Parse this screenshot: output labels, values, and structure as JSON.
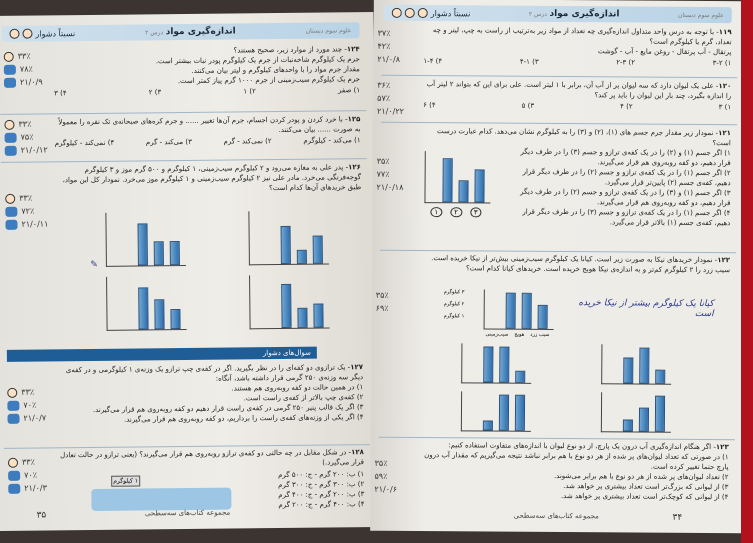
{
  "left_page": {
    "header": {
      "title": "اندازه‌گیری مواد",
      "lesson": "درس ۲",
      "level": "نسبتاً دشوار",
      "subject": "علوم سوم دبستان"
    },
    "questions": [
      {
        "num": "۱۲۴",
        "text": "چند مورد از موارد زیر، صحیح هستند؟",
        "items": [
          "جرم یک کیلوگرم شاخه‌نبات از جرم یک کیلوگرم پودر نبات بیشتر است.",
          "مقدار جرم مواد را با واحدهای کیلوگرم و لیتر بیان می‌کنند.",
          "جرم یک کیلوگرم سیب‌زمینی از جرم ۱۰۰۰ گرم پیاز کمتر است."
        ],
        "options": [
          "۱) صفر",
          "۲) ۱",
          "۳) ۲",
          "۴) ۳"
        ],
        "stats": [
          "۳۳٪",
          "۷۸٪",
          "۲۱/۰/۹"
        ]
      },
      {
        "num": "۱۲۵",
        "text": "با خرد کردن و پودر کردن اجسام، جرم آن‌ها تغییر ...... و جرم کره‌های صبحانه‌ی تک نفره را معمولاً به صورت ...... بیان می‌کنند.",
        "options": [
          "۱) می‌کند - کیلوگرم",
          "۲) نمی‌کند - گرم",
          "۳) می‌کند - گرم",
          "۴) نمی‌کند - کیلوگرم"
        ],
        "stats": [
          "۳۳٪",
          "۷۵٪",
          "۲۱/۰/۱۲"
        ]
      },
      {
        "num": "۱۲۶",
        "text": "پدر علی به مغازه می‌رود و ۲ کیلوگرم سیب‌زمینی، ۱ کیلوگرم و ۵۰۰ گرم موز و ۳ کیلوگرم گوجه‌فرنگی می‌خرد. مادر علی نیز ۲ کیلوگرم سیب‌زمینی و ۱ کیلوگرم موز می‌خرد. نمودار کل این مواد، طبق خریدهای آن‌ها کدام است؟",
        "axis_unit": "کیلوگرم",
        "categories": [
          "سیب‌زمینی",
          "موز",
          "گوجه‌فرنگی"
        ],
        "stats": [
          "۳۳٪",
          "۷۲٪",
          "۲۱/۰/۱۱"
        ]
      },
      {
        "num": "۱۲۷",
        "text": "یک ترازوی دو کفه‌ای را در نظر بگیرید. اگر در کفه‌ی چپ ترازو یک وزنه‌ی ۱ کیلوگرمی و در کفه‌ی دیگر سه وزنه‌ی ۲۵۰ گرمی قرار داشته باشد، آنگاه:",
        "items": [
          "۱) در همین حالت دو کفه روبه‌روی هم هستند.",
          "۲) کفه‌ی چپ بالاتر از کفه‌ی راست است.",
          "۳) اگر یک قالب پنیر ۲۵۰ گرمی در کفه‌ی راست قرار دهیم دو کفه روبه‌روی هم قرار می‌گیرند.",
          "۴) اگر یکی از وزنه‌های کفه‌ی راست را برداریم، دو کفه روبه‌روی هم قرار می‌گیرند."
        ],
        "stats": [
          "۳۳٪",
          "۷۰٪",
          "۲۱/۰/۷"
        ]
      },
      {
        "num": "۱۲۸",
        "text": "در شکل مقابل در چه حالتی دو کفه‌ی ترازو روبه‌روی هم قرار می‌گیرند؟ (یعنی ترازو در حالت تعادل قرار می‌گیرد.)",
        "items": [
          "۱) ب: ۲۰۰ گرم - ج: ۵۰۰ گرم",
          "۲) ب: ۳۰۰ گرم - ج: ۳۰۰ گرم",
          "۳) ب: ۲۰۰ گرم - ج: ۴۰۰ گرم",
          "۴) ب: ۴۰۰ گرم - ج: ۲۰۰ گرم"
        ],
        "scale_label": "۱ کیلوگرم",
        "stats": [
          "۳۳٪",
          "۷۰٪",
          "۲۱/۰/۳"
        ]
      }
    ],
    "banner": "سوال‌های دشوار",
    "footer": "مجموعه کتاب‌های سه‌سطحی",
    "page_number": "۳۵"
  },
  "right_page": {
    "header": {
      "title": "اندازه‌گیری مواد",
      "lesson": "درس ۲",
      "level": "نسبتاً دشوار",
      "subject": "علوم سوم دبستان"
    },
    "questions": [
      {
        "num": "۱۱۹",
        "text": "با توجه به درس واحد متداول اندازه‌گیری چه تعداد از مواد زیر به‌ترتیب از راست به چپ، لیتر و چه تعداد، گرم یا کیلوگرم است؟",
        "items": [
          "پرتقال - آب پرتقال - روغن مایع - آب - گوشت"
        ],
        "options": [
          "۱) ۳-۲",
          "۲) ۲-۳",
          "۳) ۴-۱",
          "۴) ۱-۴"
        ],
        "stats": [
          "۳۷٪",
          "۴۲٪",
          "۲۱/۰/۸"
        ]
      },
      {
        "num": "۱۲۰",
        "text": "علی یک لیوان دارد که سه لیوان پر از آب آن، برابر با ۱ لیتر است. علی برای این که بتواند ۲ لیتر آب را اندازه بگیرد، چند بار این لیوان را باید پر کند؟",
        "options": [
          "۱) ۳",
          "۲) ۴",
          "۳) ۵",
          "۴) ۶"
        ],
        "stats": [
          "۳۶٪",
          "۵۷٪",
          "۲۱/۰/۲۲"
        ]
      },
      {
        "num": "۱۲۱",
        "text": "نمودار زیر مقدار جرم جسم های (۱)، (۲) و (۳) را به کیلوگرم نشان می‌دهد. کدام عبارت درست است؟",
        "items": [
          "۱) اگر جسم (۱) و (۲) را در یک کفه‌ی ترازو و جسم (۳) را در طرف دیگر قرار دهیم، دو کفه روبه‌روی هم قرار می‌گیرند.",
          "۲) اگر جسم (۱) را در یک کفه‌ی ترازو و جسم (۲) را در طرف دیگر قرار دهیم، کفه‌ی جسم (۲) پایین‌تر قرار می‌گیرد.",
          "۳) اگر جسم (۱) و (۳) را در یک کفه‌ی ترازو و جسم (۲) را در طرف دیگر قرار دهیم، دو کفه روبه‌روی هم قرار می‌گیرند.",
          "۴) اگر جسم (۱) را در یک کفه‌ی ترازو و جسم (۳) را در طرف دیگر قرار دهیم، کفه‌ی جسم (۱) بالاتر قرار می‌گیرد."
        ],
        "bar_labels": [
          "۱",
          "۲",
          "۳"
        ],
        "bar_values": [
          3,
          2,
          4
        ],
        "stats": [
          "۳۵٪",
          "۷۷٪",
          "۲۱/۰/۱۸"
        ]
      },
      {
        "num": "۱۲۲",
        "text": "نمودار خریدهای نیکا به صورت زیر است. کیانا یک کیلوگرم سیب‌زمینی بیش‌تر از نیکا خریده است. سیب زرد را ۲ کیلوگرم کم‌تر و به اندازه‌ی نیکا هویج خریده است. خریدهای کیانا کدام است؟",
        "axis_labels": [
          "۱ کیلوگرم",
          "۲ کیلوگرم",
          "۳ کیلوگرم"
        ],
        "categories": [
          "سیب‌زمینی",
          "هویج",
          "سیب زرد"
        ],
        "stats": [
          "۳۵٪",
          "۶۹٪"
        ]
      },
      {
        "num": "۱۲۳",
        "text": "اگر هنگام اندازه‌گیری آب درون یک پارچ، از دو نوع لیوان با اندازه‌های متفاوت استفاده کنیم:",
        "items": [
          "۱) در صورتی که تعداد لیوان‌های پر شده از هر دو نوع با هم برابر نباشد نتیجه می‌گیریم که مقدار آب درون پارچ حتما تغییر کرده است.",
          "۲) تعداد لیوان‌های پر شده از هر دو نوع با هم برابر می‌شوند.",
          "۳) از لیوانی که بزرگ‌تر است تعداد بیشتری پر خواهد شد.",
          "۴) از لیوانی که کوچک‌تر است تعداد بیشتری پر خواهد شد."
        ],
        "stats": [
          "۳۵٪",
          "۵۹٪",
          "۲۱/۰/۶"
        ]
      }
    ],
    "handwriting": "کیانا یک کیلوگرم بیشتر از نیکا خریده است",
    "footer": "مجموعه کتاب‌های سه‌سطحی",
    "page_number": "۳۴"
  }
}
